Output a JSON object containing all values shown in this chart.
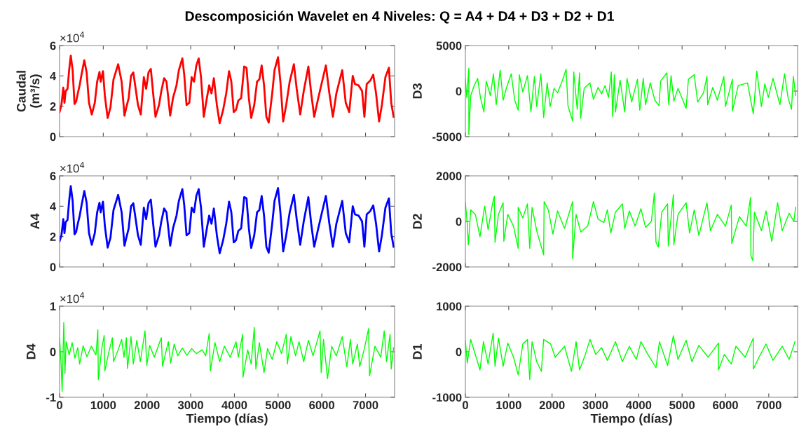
{
  "chart_data": [
    {
      "type": "line",
      "title": "Descomposición Wavelet en 4 Niveles: Q = A4 + D4 + D3 + D2 + D1",
      "ylabel": "Caudal\n(m³/s)",
      "annotations": [
        "×10$^{4}$"
      ],
      "tick_labels": "y",
      "grid": false,
      "xlim": [
        0,
        7665
      ],
      "xticks": [
        0,
        1000,
        2000,
        3000,
        4000,
        5000,
        6000,
        7000
      ],
      "ylim": [
        0,
        6
      ],
      "yticks": [
        0,
        2,
        4,
        6
      ],
      "series": [
        {
          "color": "#ff0000",
          "x": [
            0,
            43,
            85,
            112,
            139,
            182,
            219,
            256,
            299,
            342,
            379,
            417,
            459,
            502,
            566,
            619,
            673,
            737,
            806,
            860,
            913,
            940,
            993,
            1036,
            1100,
            1164,
            1234,
            1340,
            1420,
            1485,
            1527,
            1581,
            1634,
            1687,
            1741,
            1794,
            1858,
            1928,
            1981,
            2035,
            2088,
            2141,
            2195,
            2275,
            2328,
            2392,
            2446,
            2488,
            2531,
            2595,
            2675,
            2729,
            2809,
            2852,
            2905,
            2969,
            3022,
            3076,
            3129,
            3183,
            3236,
            3300,
            3370,
            3423,
            3476,
            3530,
            3599,
            3663,
            3743,
            3813,
            3877,
            3930,
            3984,
            4037,
            4090,
            4155,
            4224,
            4277,
            4331,
            4384,
            4454,
            4518,
            4571,
            4624,
            4678,
            4731,
            4785,
            4865,
            4918,
            4998,
            5052,
            5116,
            5185,
            5265,
            5361,
            5425,
            5506,
            5586,
            5692,
            5757,
            5826,
            5906,
            5986,
            6093,
            6173,
            6253,
            6333,
            6467,
            6547,
            6627,
            6707,
            6760,
            6841,
            6921,
            6974,
            7027,
            7108,
            7177,
            7241,
            7310,
            7374,
            7455,
            7535,
            7588,
            7642
          ],
          "values": [
            1.62,
            2.08,
            3.23,
            2.23,
            3.0,
            3.15,
            4.38,
            5.34,
            4.38,
            2.15,
            2.31,
            2.85,
            3.38,
            4.08,
            5.03,
            4.23,
            2.23,
            1.46,
            2.23,
            3.62,
            4.26,
            3.62,
            4.31,
            2.69,
            1.23,
            1.92,
            3.77,
            4.77,
            3.62,
            1.38,
            1.92,
            2.54,
            4.0,
            4.23,
            3.15,
            2.08,
            1.46,
            3.92,
            3.15,
            4.23,
            4.46,
            2.85,
            1.31,
            2.08,
            3.0,
            3.85,
            3.62,
            2.54,
            1.38,
            2.54,
            3.38,
            4.38,
            5.15,
            4.08,
            2.08,
            2.23,
            3.92,
            3.62,
            4.69,
            5.15,
            3.92,
            1.31,
            2.54,
            3.38,
            2.85,
            3.85,
            2.08,
            0.88,
            1.77,
            2.85,
            4.31,
            3.62,
            1.62,
            1.77,
            2.38,
            2.54,
            4.62,
            4.54,
            2.54,
            1.23,
            2.08,
            3.62,
            3.77,
            4.69,
            3.38,
            1.31,
            0.92,
            2.85,
            4.38,
            5.23,
            3.62,
            1.0,
            2.08,
            3.62,
            4.77,
            3.15,
            1.46,
            3.0,
            4.62,
            2.85,
            1.31,
            2.38,
            3.38,
            4.69,
            2.85,
            1.31,
            2.85,
            4.38,
            2.23,
            1.62,
            4.0,
            3.46,
            3.38,
            3.0,
            1.31,
            3.46,
            3.69,
            4.08,
            2.85,
            1.0,
            2.08,
            3.92,
            4.54,
            2.23,
            1.31
          ]
        }
      ]
    },
    {
      "type": "line",
      "ylabel": "D3",
      "tick_labels": "y",
      "grid": false,
      "xlim": [
        0,
        7665
      ],
      "xticks": [
        0,
        1000,
        2000,
        3000,
        4000,
        5000,
        6000,
        7000
      ],
      "ylim": [
        -5000,
        5000
      ],
      "yticks": [
        -5000,
        0,
        5000
      ],
      "series": [
        {
          "color": "#00ff00",
          "x": [
            0,
            32,
            80,
            80,
            123,
            203,
            283,
            347,
            428,
            481,
            577,
            647,
            711,
            802,
            871,
            951,
            1058,
            1138,
            1218,
            1245,
            1325,
            1432,
            1512,
            1592,
            1646,
            1742,
            1806,
            1887,
            1956,
            2046,
            2127,
            2233,
            2324,
            2367,
            2474,
            2500,
            2580,
            2634,
            2660,
            2741,
            2874,
            2955,
            3062,
            3142,
            3222,
            3302,
            3367,
            3399,
            3436,
            3463,
            3570,
            3676,
            3730,
            3837,
            3970,
            4023,
            4104,
            4157,
            4265,
            4371,
            4467,
            4505,
            4649,
            4692,
            4746,
            4810,
            4906,
            5093,
            5146,
            5280,
            5360,
            5494,
            5574,
            5590,
            5707,
            5814,
            5964,
            6001,
            6161,
            6161,
            6295,
            6509,
            6643,
            6723,
            6830,
            6910,
            6990,
            7097,
            7257,
            7364,
            7444,
            7524,
            7567,
            7620
          ],
          "values": [
            1300,
            -700,
            2500,
            -4800,
            -500,
            600,
            1400,
            -700,
            -2300,
            1100,
            -500,
            1900,
            -1500,
            2300,
            -1000,
            400,
            1900,
            -1000,
            -2100,
            1800,
            -100,
            1700,
            -2300,
            1600,
            -1700,
            1900,
            -2900,
            900,
            -1700,
            300,
            -200,
            1100,
            2400,
            -1600,
            -3300,
            2100,
            -2000,
            2000,
            -3000,
            300,
            900,
            -900,
            400,
            -300,
            600,
            -700,
            2100,
            -2800,
            1800,
            -2300,
            1200,
            -2300,
            1400,
            -1200,
            1300,
            -2100,
            1400,
            -1500,
            900,
            -1000,
            -1600,
            1100,
            2000,
            -1500,
            1700,
            -1100,
            300,
            -1900,
            1300,
            1800,
            -1200,
            -200,
            1600,
            -1500,
            400,
            -1000,
            1600,
            -1700,
            1300,
            -2200,
            600,
            900,
            -2500,
            2200,
            -1700,
            800,
            -700,
            1400,
            -1500,
            1900,
            -700,
            -2000,
            1600,
            -500
          ]
        }
      ]
    },
    {
      "type": "line",
      "ylabel": "A4",
      "annotations": [
        "×10$^{4}$"
      ],
      "tick_labels": "y",
      "grid": false,
      "xlim": [
        0,
        7665
      ],
      "xticks": [
        0,
        1000,
        2000,
        3000,
        4000,
        5000,
        6000,
        7000
      ],
      "ylim": [
        0,
        6
      ],
      "yticks": [
        0,
        2,
        4,
        6
      ],
      "series": [
        {
          "color": "#0000ff",
          "x": [
            0,
            43,
            85,
            112,
            139,
            182,
            219,
            256,
            299,
            342,
            379,
            417,
            459,
            502,
            566,
            619,
            673,
            737,
            806,
            860,
            913,
            940,
            993,
            1036,
            1100,
            1164,
            1234,
            1340,
            1420,
            1485,
            1527,
            1581,
            1634,
            1687,
            1741,
            1794,
            1858,
            1928,
            1981,
            2035,
            2088,
            2141,
            2195,
            2275,
            2328,
            2392,
            2446,
            2488,
            2531,
            2595,
            2675,
            2729,
            2809,
            2852,
            2905,
            2969,
            3022,
            3076,
            3129,
            3183,
            3236,
            3300,
            3370,
            3423,
            3476,
            3530,
            3599,
            3663,
            3743,
            3813,
            3877,
            3930,
            3984,
            4037,
            4090,
            4155,
            4224,
            4277,
            4331,
            4384,
            4454,
            4518,
            4571,
            4624,
            4678,
            4731,
            4785,
            4865,
            4918,
            4998,
            5052,
            5116,
            5185,
            5265,
            5361,
            5425,
            5506,
            5586,
            5692,
            5757,
            5826,
            5906,
            5986,
            6093,
            6173,
            6253,
            6333,
            6467,
            6547,
            6627,
            6707,
            6760,
            6841,
            6921,
            6974,
            7027,
            7108,
            7177,
            7241,
            7310,
            7374,
            7455,
            7535,
            7588,
            7642
          ],
          "values": [
            1.7,
            2.08,
            3.15,
            2.23,
            2.95,
            3.1,
            4.35,
            5.32,
            4.35,
            2.15,
            2.31,
            2.85,
            3.35,
            4.05,
            5.0,
            4.23,
            2.23,
            1.46,
            2.23,
            3.6,
            4.23,
            3.6,
            4.3,
            2.7,
            1.28,
            1.92,
            3.75,
            4.75,
            3.6,
            1.4,
            1.92,
            2.54,
            4.0,
            4.2,
            3.15,
            2.08,
            1.46,
            3.9,
            3.15,
            4.2,
            4.43,
            2.85,
            1.33,
            2.08,
            3.0,
            3.85,
            3.6,
            2.54,
            1.4,
            2.54,
            3.38,
            4.35,
            5.13,
            4.08,
            2.08,
            2.23,
            3.9,
            3.6,
            4.68,
            5.13,
            3.9,
            1.33,
            2.54,
            3.38,
            2.85,
            3.85,
            2.08,
            0.9,
            1.77,
            2.85,
            4.3,
            3.6,
            1.62,
            1.77,
            2.38,
            2.54,
            4.6,
            4.52,
            2.54,
            1.25,
            2.08,
            3.6,
            3.75,
            4.68,
            3.38,
            1.33,
            0.94,
            2.85,
            4.35,
            5.2,
            3.6,
            1.02,
            2.08,
            3.6,
            4.75,
            3.15,
            1.46,
            3.0,
            4.6,
            2.85,
            1.33,
            2.38,
            3.38,
            4.68,
            2.85,
            1.33,
            2.85,
            4.35,
            2.23,
            1.62,
            4.0,
            3.46,
            3.38,
            3.0,
            1.33,
            3.46,
            3.68,
            4.05,
            2.85,
            1.02,
            2.08,
            3.9,
            4.52,
            2.23,
            1.33
          ]
        }
      ]
    },
    {
      "type": "line",
      "ylabel": "D2",
      "tick_labels": "y",
      "grid": false,
      "xlim": [
        0,
        7665
      ],
      "xticks": [
        0,
        1000,
        2000,
        3000,
        4000,
        5000,
        6000,
        7000
      ],
      "ylim": [
        -2000,
        2000
      ],
      "yticks": [
        -2000,
        0,
        2000
      ],
      "series": [
        {
          "color": "#00ff00",
          "x": [
            0,
            43,
            69,
            123,
            230,
            337,
            444,
            524,
            630,
            668,
            684,
            764,
            871,
            887,
            978,
            1111,
            1218,
            1218,
            1325,
            1432,
            1485,
            1539,
            1646,
            1806,
            1817,
            1913,
            2020,
            2126,
            2287,
            2474,
            2474,
            2554,
            2661,
            2821,
            2955,
            3061,
            3195,
            3275,
            3356,
            3463,
            3624,
            3677,
            3783,
            3917,
            4050,
            4157,
            4291,
            4361,
            4398,
            4451,
            4532,
            4665,
            4681,
            4799,
            4810,
            4906,
            5093,
            5173,
            5280,
            5387,
            5574,
            5654,
            5814,
            6001,
            6135,
            6146,
            6322,
            6482,
            6578,
            6589,
            6632,
            6669,
            6830,
            6936,
            7070,
            7204,
            7311,
            7471,
            7578,
            7620
          ],
          "values": [
            820,
            -100,
            -1030,
            510,
            310,
            -670,
            670,
            -360,
            820,
            1100,
            -920,
            310,
            820,
            -870,
            310,
            -210,
            -1180,
            620,
            150,
            770,
            -1180,
            620,
            -410,
            -1470,
            870,
            510,
            -560,
            460,
            -310,
            870,
            -1640,
            310,
            -460,
            -210,
            870,
            100,
            -50,
            510,
            -510,
            410,
            770,
            -310,
            460,
            -210,
            560,
            -260,
            0,
            1250,
            -920,
            -1130,
            410,
            770,
            -1080,
            1180,
            -1030,
            310,
            820,
            -510,
            510,
            -620,
            820,
            -410,
            310,
            -210,
            720,
            -970,
            210,
            -210,
            1050,
            -1520,
            -1720,
            410,
            -410,
            460,
            -870,
            820,
            -410,
            360,
            0,
            620
          ]
        }
      ]
    },
    {
      "type": "line",
      "ylabel": "D4",
      "xlabel": "Tiempo (días)",
      "annotations": [
        "×10$^{4}$"
      ],
      "grid": false,
      "xlim": [
        0,
        7665
      ],
      "xticks": [
        0,
        1000,
        2000,
        3000,
        4000,
        5000,
        6000,
        7000
      ],
      "ylim": [
        -1,
        1
      ],
      "yticks": [
        -1,
        0,
        1
      ],
      "series": [
        {
          "color": "#00ff00",
          "x": [
            0,
            32,
            59,
            96,
            123,
            150,
            219,
            288,
            352,
            416,
            459,
            539,
            625,
            726,
            833,
            876,
            886,
            966,
            1020,
            1036,
            1127,
            1207,
            1234,
            1340,
            1420,
            1474,
            1527,
            1554,
            1634,
            1687,
            1767,
            1847,
            1954,
            1997,
            2061,
            2168,
            2328,
            2355,
            2488,
            2542,
            2622,
            2702,
            2809,
            2915,
            3022,
            3129,
            3263,
            3343,
            3423,
            3450,
            3556,
            3663,
            3770,
            3904,
            4037,
            4090,
            4187,
            4197,
            4304,
            4384,
            4454,
            4491,
            4571,
            4678,
            4758,
            4865,
            4971,
            5078,
            5185,
            5212,
            5292,
            5399,
            5479,
            5586,
            5692,
            5799,
            5959,
            5986,
            6039,
            6130,
            6226,
            6333,
            6467,
            6573,
            6654,
            6707,
            6814,
            6867,
            6974,
            7070,
            7092,
            7215,
            7348,
            7428,
            7481,
            7561,
            7588,
            7642
          ],
          "values": [
            0.3,
            -0.2,
            -0.87,
            0.64,
            -0.48,
            0.22,
            -0.07,
            0.2,
            -0.14,
            0.09,
            -0.27,
            0.13,
            -0.11,
            0.12,
            -0.07,
            0.48,
            -0.61,
            0.07,
            0.36,
            -0.42,
            -0.01,
            0.31,
            -0.22,
            0.04,
            0.27,
            -0.12,
            0.31,
            -0.37,
            0.33,
            -0.27,
            0.25,
            -0.22,
            0.46,
            -0.3,
            0.14,
            -0.12,
            0.31,
            -0.32,
            0.22,
            -0.25,
            0.17,
            -0.09,
            0.08,
            -0.08,
            0.07,
            -0.04,
            0.04,
            -0.09,
            0.4,
            -0.42,
            0.2,
            -0.22,
            0.12,
            -0.12,
            0.22,
            -0.12,
            0.38,
            -0.56,
            0.04,
            -0.27,
            0.53,
            -0.38,
            0.2,
            -0.46,
            0.07,
            -0.17,
            0.22,
            -0.04,
            0.38,
            -0.27,
            0.33,
            -0.09,
            0.22,
            -0.22,
            0.25,
            -0.09,
            0.46,
            -0.46,
            0.27,
            -0.59,
            0.12,
            -0.09,
            0.33,
            -0.33,
            0.27,
            -0.27,
            0.17,
            -0.33,
            0.07,
            0.51,
            -0.53,
            0.12,
            -0.12,
            0.46,
            -0.22,
            0.38,
            -0.38,
            0.09
          ]
        }
      ]
    },
    {
      "type": "line",
      "ylabel": "D1",
      "xlabel": "Tiempo (días)",
      "grid": false,
      "xlim": [
        0,
        7665
      ],
      "xticks": [
        0,
        1000,
        2000,
        3000,
        4000,
        5000,
        6000,
        7000
      ],
      "ylim": [
        -1000,
        1000
      ],
      "yticks": [
        -1000,
        0,
        1000
      ],
      "series": [
        {
          "color": "#00ff00",
          "x": [
            0,
            43,
            123,
            337,
            417,
            524,
            641,
            684,
            764,
            871,
            978,
            1111,
            1218,
            1325,
            1432,
            1485,
            1539,
            1646,
            1753,
            1806,
            1967,
            2073,
            2287,
            2447,
            2554,
            2634,
            2768,
            2875,
            3009,
            3142,
            3276,
            3463,
            3623,
            3783,
            3944,
            4051,
            4211,
            4398,
            4478,
            4665,
            4799,
            4906,
            5093,
            5226,
            5387,
            5600,
            5841,
            5841,
            5975,
            6135,
            6242,
            6456,
            6643,
            6643,
            6776,
            6936,
            7097,
            7311,
            7471,
            7604
          ],
          "values": [
            250,
            -250,
            270,
            -400,
            220,
            -270,
            410,
            -320,
            300,
            -320,
            190,
            -120,
            -510,
            170,
            270,
            -610,
            220,
            -220,
            -430,
            270,
            170,
            -120,
            120,
            -430,
            220,
            -400,
            -60,
            270,
            -60,
            90,
            -190,
            220,
            -220,
            120,
            -170,
            220,
            -60,
            -350,
            220,
            -300,
            350,
            -170,
            250,
            -220,
            140,
            -120,
            190,
            -400,
            -60,
            -270,
            120,
            -120,
            300,
            -380,
            -120,
            170,
            -190,
            120,
            -170,
            220
          ]
        }
      ]
    }
  ]
}
